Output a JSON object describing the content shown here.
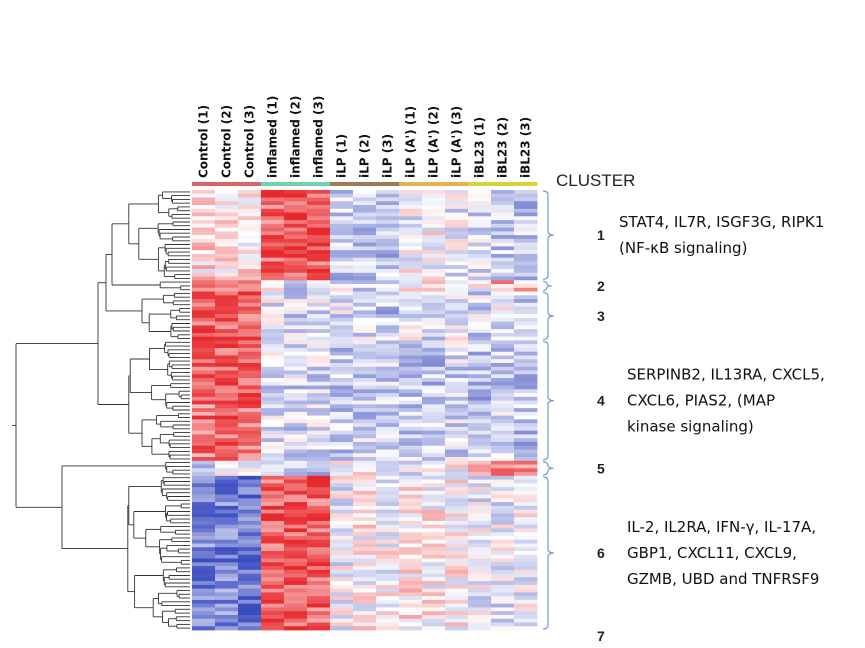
{
  "chart_data": {
    "type": "heatmap",
    "columns": [
      {
        "label": "Control (1)",
        "group": "Control"
      },
      {
        "label": "Control (2)",
        "group": "Control"
      },
      {
        "label": "Control (3)",
        "group": "Control"
      },
      {
        "label": "inflamed (1)",
        "group": "inflamed"
      },
      {
        "label": "inflamed (2)",
        "group": "inflamed"
      },
      {
        "label": "inflamed (3)",
        "group": "inflamed"
      },
      {
        "label": "iLP (1)",
        "group": "iLP"
      },
      {
        "label": "iLP (2)",
        "group": "iLP"
      },
      {
        "label": "iLP (3)",
        "group": "iLP"
      },
      {
        "label": "iLP (A') (1)",
        "group": "iLP (A')"
      },
      {
        "label": "iLP (A') (2)",
        "group": "iLP (A')"
      },
      {
        "label": "iLP (A') (3)",
        "group": "iLP (A')"
      },
      {
        "label": "iBL23 (1)",
        "group": "iBL23"
      },
      {
        "label": "iBL23 (2)",
        "group": "iBL23"
      },
      {
        "label": "iBL23 (3)",
        "group": "iBL23"
      }
    ],
    "group_colors": {
      "Control": "#d9636a",
      "inflamed": "#6fd3b0",
      "iLP": "#a0795a",
      "iLP (A')": "#e8b24a",
      "iBL23": "#d7d43a"
    },
    "colorscale": {
      "low": "#3b4cc0",
      "mid": "#ffffff",
      "high": "#e8292c"
    },
    "cluster_header": "CLUSTER",
    "clusters": [
      {
        "number": "1",
        "rows": 24,
        "profile": [
          0.15,
          0.12,
          0.1,
          0.75,
          0.8,
          0.75,
          -0.3,
          -0.25,
          -0.35,
          -0.05,
          0,
          -0.1,
          -0.2,
          -0.25,
          -0.3
        ],
        "genes": "STAT4, IL7R, ISGF3G, RIPK1",
        "pathway": "(NF-κB signaling)"
      },
      {
        "number": "2",
        "rows": 3,
        "profile": [
          0.6,
          0.5,
          0.55,
          0.3,
          -0.2,
          0.1,
          -0.1,
          -0.2,
          -0.1,
          0,
          0.1,
          0.15,
          0.05,
          0.4,
          0.3
        ],
        "genes": "",
        "pathway": ""
      },
      {
        "number": "3",
        "rows": 13,
        "profile": [
          0.75,
          0.7,
          0.75,
          -0.1,
          -0.2,
          -0.15,
          -0.15,
          -0.2,
          -0.3,
          -0.1,
          -0.15,
          -0.1,
          -0.2,
          -0.1,
          -0.25
        ],
        "genes": "",
        "pathway": ""
      },
      {
        "number": "4",
        "rows": 32,
        "profile": [
          0.65,
          0.75,
          0.7,
          -0.15,
          -0.2,
          -0.2,
          -0.3,
          -0.25,
          -0.2,
          -0.25,
          -0.3,
          -0.2,
          -0.35,
          -0.25,
          -0.3
        ],
        "genes": "SERPINB2, IL13RA, CXCL5,",
        "pathway": "CXCL6, PIAS2, (MAP",
        "pathway2": "kinase signaling)"
      },
      {
        "number": "5",
        "rows": 4,
        "profile": [
          -0.2,
          -0.1,
          -0.2,
          -0.3,
          -0.35,
          -0.3,
          0.05,
          0,
          -0.05,
          -0.1,
          -0.1,
          0,
          0.45,
          0.5,
          0.45
        ],
        "genes": "",
        "pathway": ""
      },
      {
        "number": "6",
        "rows": 41,
        "profile": [
          -0.7,
          -0.65,
          -0.8,
          0.75,
          0.8,
          0.7,
          -0.05,
          0.05,
          0,
          0.1,
          0.05,
          0.05,
          -0.1,
          -0.1,
          -0.05
        ],
        "genes": "IL-2, IL2RA, IFN-γ, IL-17A,",
        "pathway": "GBP1, CXCL11, CXCL9,",
        "pathway2": "GZMB, UBD and TNFRSF9"
      },
      {
        "number": "7",
        "rows": 0,
        "profile": [],
        "genes": "",
        "pathway": ""
      }
    ]
  }
}
